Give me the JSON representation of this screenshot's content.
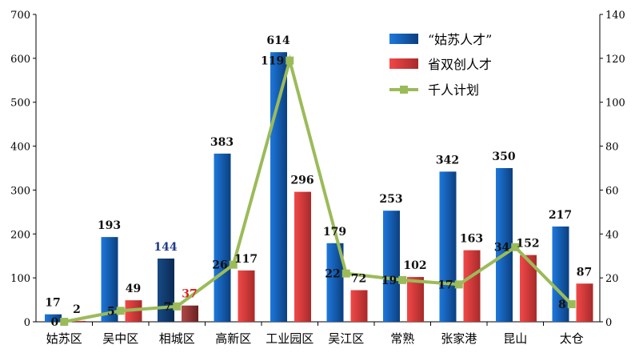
{
  "chart_data": {
    "type": "bar",
    "categories": [
      "姑苏区",
      "吴中区",
      "相城区",
      "高新区",
      "工业园区",
      "吴江区",
      "常熟",
      "张家港",
      "昆山",
      "太仓"
    ],
    "series": [
      {
        "name": "“姑苏人才”",
        "type": "bar",
        "axis": "left",
        "color": "#1a6fd0",
        "values": [
          17,
          193,
          144,
          383,
          614,
          179,
          253,
          342,
          350,
          217
        ]
      },
      {
        "name": "省双创人才",
        "type": "bar",
        "axis": "left",
        "color": "#e83a3a",
        "values": [
          2,
          49,
          37,
          117,
          296,
          72,
          102,
          163,
          152,
          87
        ]
      },
      {
        "name": "千人计划",
        "type": "line",
        "axis": "right",
        "color": "#9bbb59",
        "values": [
          0,
          5,
          7,
          26,
          119,
          22,
          19,
          17,
          34,
          8
        ]
      }
    ],
    "ylim_left": [
      0,
      700
    ],
    "yticks_left": [
      0,
      100,
      200,
      300,
      400,
      500,
      600,
      700
    ],
    "ylim_right": [
      0,
      140
    ],
    "yticks_right": [
      0,
      20,
      40,
      60,
      80,
      100,
      120,
      140
    ],
    "legend_position": "top-right",
    "highlight": {
      "category": "相城区",
      "bar_color": "#0d3a6e",
      "label_color_series0": "#1f3a8a",
      "label_color_series1": "#e02020"
    }
  }
}
